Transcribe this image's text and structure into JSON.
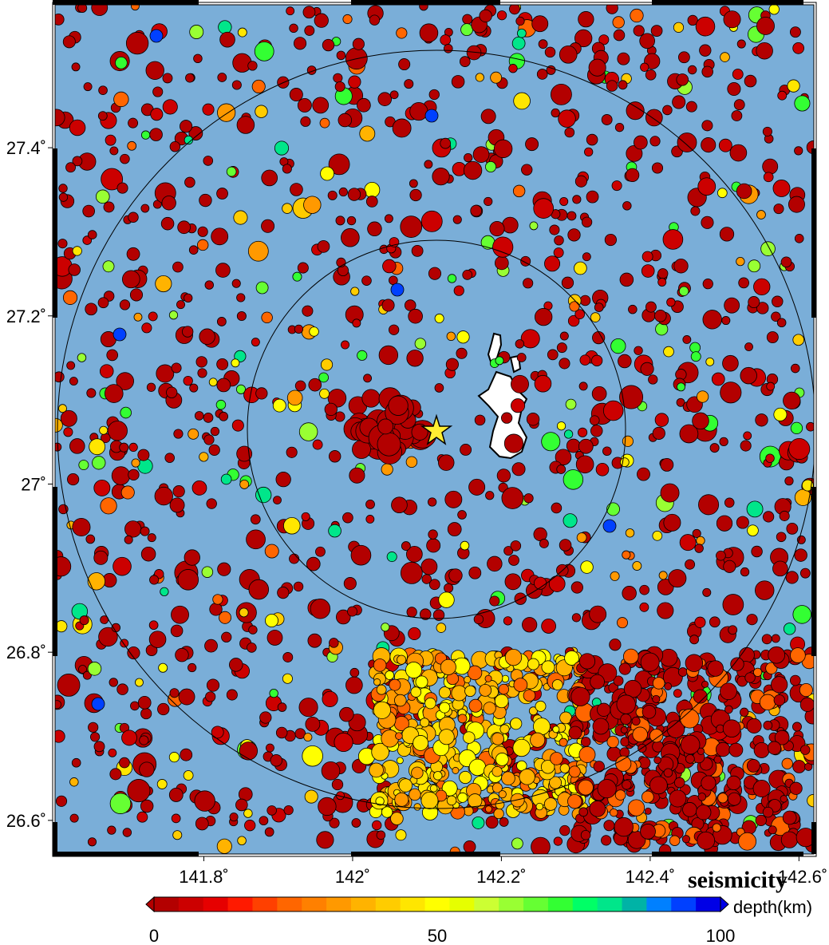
{
  "title": "seismicity",
  "colorbar": {
    "label": "depth(km)",
    "ticks": [
      {
        "value": 0,
        "label": "0"
      },
      {
        "value": 50,
        "label": "50"
      },
      {
        "value": 100,
        "label": "100"
      }
    ],
    "range": [
      0,
      100
    ],
    "colors": [
      "#b30000",
      "#cc0000",
      "#e60000",
      "#ff1a00",
      "#ff4000",
      "#ff6600",
      "#ff8000",
      "#ff9900",
      "#ffb300",
      "#ffcc00",
      "#ffe600",
      "#ffff00",
      "#e6ff00",
      "#ccff33",
      "#99ff33",
      "#66ff33",
      "#33ff33",
      "#00ff66",
      "#00e68a",
      "#00b3a6",
      "#0080ff",
      "#0040ff",
      "#0000e6"
    ]
  },
  "axes": {
    "lon_ticks": [
      {
        "value": 141.8,
        "label": "141.8˚"
      },
      {
        "value": 142.0,
        "label": "142˚"
      },
      {
        "value": 142.2,
        "label": "142.2˚"
      },
      {
        "value": 142.4,
        "label": "142.4˚"
      },
      {
        "value": 142.6,
        "label": "142.6˚"
      }
    ],
    "lat_ticks": [
      {
        "value": 27.4,
        "label": "27.4˚"
      },
      {
        "value": 27.2,
        "label": "27.2˚"
      },
      {
        "value": 27.0,
        "label": "27˚"
      },
      {
        "value": 26.8,
        "label": "26.8˚"
      },
      {
        "value": 26.6,
        "label": "26.6˚"
      }
    ],
    "lon_range": [
      141.6,
      142.62
    ],
    "lat_range": [
      26.56,
      27.57
    ]
  },
  "colors": {
    "ocean": "#7aaed8",
    "land": "#ffffff",
    "star": "#ffee33"
  },
  "epicenter": {
    "lon": 142.11,
    "lat": 27.07
  },
  "rings_km": [
    25,
    50
  ]
}
